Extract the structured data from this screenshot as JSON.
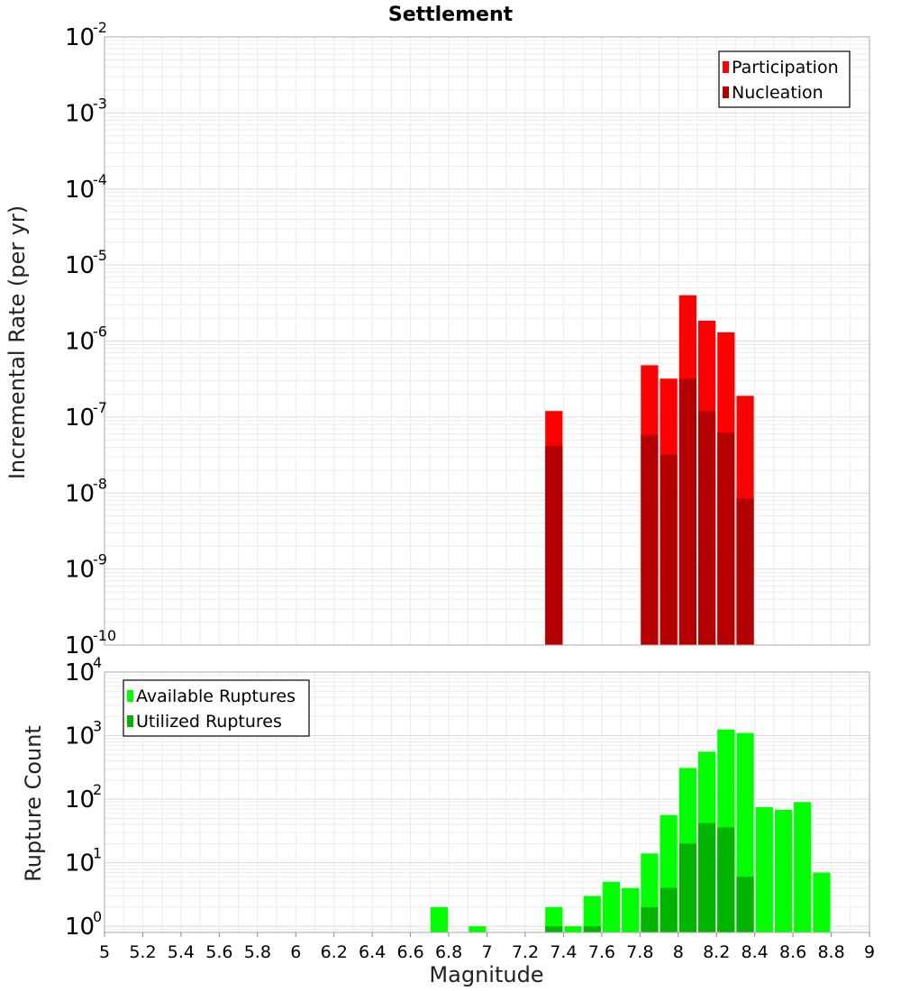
{
  "chart_data": [
    {
      "id": "top",
      "type": "bar",
      "title": "Settlement",
      "xlabel": "",
      "ylabel": "Incremental Rate (per yr)",
      "yscale": "log",
      "ylim": [
        1e-10,
        0.01
      ],
      "xlim": [
        5,
        9
      ],
      "bin_width": 0.1,
      "y_ticks": [
        {
          "value": 0.01,
          "base": "10",
          "exp": "-2"
        },
        {
          "value": 0.001,
          "base": "10",
          "exp": "-3"
        },
        {
          "value": 0.0001,
          "base": "10",
          "exp": "-4"
        },
        {
          "value": 1e-05,
          "base": "10",
          "exp": "-5"
        },
        {
          "value": 1e-06,
          "base": "10",
          "exp": "-6"
        },
        {
          "value": 1e-07,
          "base": "10",
          "exp": "-7"
        },
        {
          "value": 1e-08,
          "base": "10",
          "exp": "-8"
        },
        {
          "value": 1e-09,
          "base": "10",
          "exp": "-9"
        },
        {
          "value": 1e-10,
          "base": "10",
          "exp": "-10"
        }
      ],
      "legend_position": "top-right",
      "series": [
        {
          "name": "Participation",
          "color": "#ff0000",
          "x": [
            7.35,
            7.85,
            7.95,
            8.05,
            8.15,
            8.25,
            8.35
          ],
          "values": [
            1.2e-07,
            4.8e-07,
            3.2e-07,
            4e-06,
            1.85e-06,
            1.3e-06,
            1.9e-07
          ]
        },
        {
          "name": "Nucleation",
          "color": "#b40000",
          "x": [
            7.35,
            7.85,
            7.95,
            8.05,
            8.15,
            8.25,
            8.35
          ],
          "values": [
            4.2e-08,
            5.8e-08,
            3.2e-08,
            3.2e-07,
            1.2e-07,
            6.2e-08,
            8.5e-09
          ]
        }
      ]
    },
    {
      "id": "bottom",
      "type": "bar",
      "title": "",
      "xlabel": "Magnitude",
      "ylabel": "Rupture Count",
      "yscale": "log",
      "ylim": [
        0.8,
        10000
      ],
      "xlim": [
        5,
        9
      ],
      "bin_width": 0.1,
      "x_ticks": [
        "5",
        "5.2",
        "5.4",
        "5.6",
        "5.8",
        "6",
        "6.2",
        "6.4",
        "6.6",
        "6.8",
        "7",
        "7.2",
        "7.4",
        "7.6",
        "7.8",
        "8",
        "8.2",
        "8.4",
        "8.6",
        "8.8",
        "9"
      ],
      "y_ticks": [
        {
          "value": 10000,
          "base": "10",
          "exp": "4"
        },
        {
          "value": 1000,
          "base": "10",
          "exp": "3"
        },
        {
          "value": 100,
          "base": "10",
          "exp": "2"
        },
        {
          "value": 10,
          "base": "10",
          "exp": "1"
        },
        {
          "value": 1,
          "base": "10",
          "exp": "0"
        }
      ],
      "legend_position": "top-left",
      "series": [
        {
          "name": "Available Ruptures",
          "color": "#00ff00",
          "x": [
            6.75,
            6.95,
            7.35,
            7.45,
            7.55,
            7.65,
            7.75,
            7.85,
            7.95,
            8.05,
            8.15,
            8.25,
            8.35,
            8.45,
            8.55,
            8.65,
            8.75
          ],
          "values": [
            2,
            1,
            2,
            1,
            3,
            5,
            4,
            14,
            56,
            310,
            560,
            1250,
            1100,
            75,
            68,
            90,
            7
          ]
        },
        {
          "name": "Utilized Ruptures",
          "color": "#00b400",
          "x": [
            7.35,
            7.55,
            7.85,
            7.95,
            8.05,
            8.15,
            8.25,
            8.35
          ],
          "values": [
            1,
            1,
            2,
            4,
            20,
            42,
            36,
            6
          ]
        }
      ]
    }
  ]
}
